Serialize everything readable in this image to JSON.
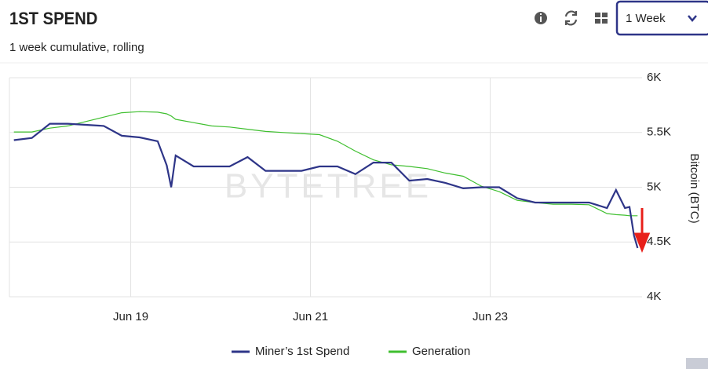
{
  "header": {
    "title": "1ST SPEND",
    "subtitle": "1 week cumulative, rolling",
    "range_select": "1 Week"
  },
  "chart_data": {
    "type": "line",
    "y_label": "Bitcoin (BTC)",
    "watermark": "BYTETREE",
    "x": [
      17.7,
      17.9,
      18.1,
      18.3,
      18.5,
      18.7,
      18.9,
      19.1,
      19.3,
      19.4,
      19.45,
      19.5,
      19.7,
      19.9,
      20.1,
      20.3,
      20.5,
      20.7,
      20.9,
      21.1,
      21.3,
      21.5,
      21.7,
      21.9,
      22.1,
      22.3,
      22.5,
      22.7,
      22.9,
      23.1,
      23.3,
      23.5,
      23.7,
      23.9,
      24.1,
      24.3,
      24.4,
      24.5,
      24.55,
      24.6,
      24.64
    ],
    "series": [
      {
        "name": "Miner’s 1st Spend",
        "color": "#2e3588",
        "values": [
          5430,
          5450,
          5580,
          5580,
          5570,
          5560,
          5470,
          5455,
          5420,
          5200,
          5000,
          5290,
          5190,
          5190,
          5190,
          5275,
          5150,
          5150,
          5150,
          5190,
          5190,
          5120,
          5225,
          5225,
          5060,
          5075,
          5040,
          4990,
          5000,
          5000,
          4900,
          4860,
          4860,
          4860,
          4860,
          4810,
          4975,
          4810,
          4820,
          4560,
          4445
        ]
      },
      {
        "name": "Generation",
        "color": "#3fbf2f",
        "values": [
          5505,
          5505,
          5540,
          5560,
          5600,
          5640,
          5680,
          5690,
          5685,
          5670,
          5650,
          5620,
          5590,
          5560,
          5550,
          5530,
          5510,
          5500,
          5490,
          5480,
          5420,
          5330,
          5250,
          5205,
          5190,
          5170,
          5130,
          5100,
          5010,
          4960,
          4880,
          4860,
          4845,
          4845,
          4840,
          4760,
          4750,
          4745,
          4740,
          4740,
          4740
        ]
      }
    ],
    "xlim": [
      17.65,
      24.69
    ],
    "xticks": [
      {
        "value": 19,
        "label": "Jun 19"
      },
      {
        "value": 21,
        "label": "Jun 21"
      },
      {
        "value": 23,
        "label": "Jun 23"
      }
    ],
    "ylim": [
      4000,
      6000
    ],
    "yticks": [
      {
        "value": 4000,
        "label": "4K"
      },
      {
        "value": 4500,
        "label": "4.5K"
      },
      {
        "value": 5000,
        "label": "5K"
      },
      {
        "value": 5500,
        "label": "5.5K"
      },
      {
        "value": 6000,
        "label": "6K"
      }
    ],
    "grid": true
  }
}
